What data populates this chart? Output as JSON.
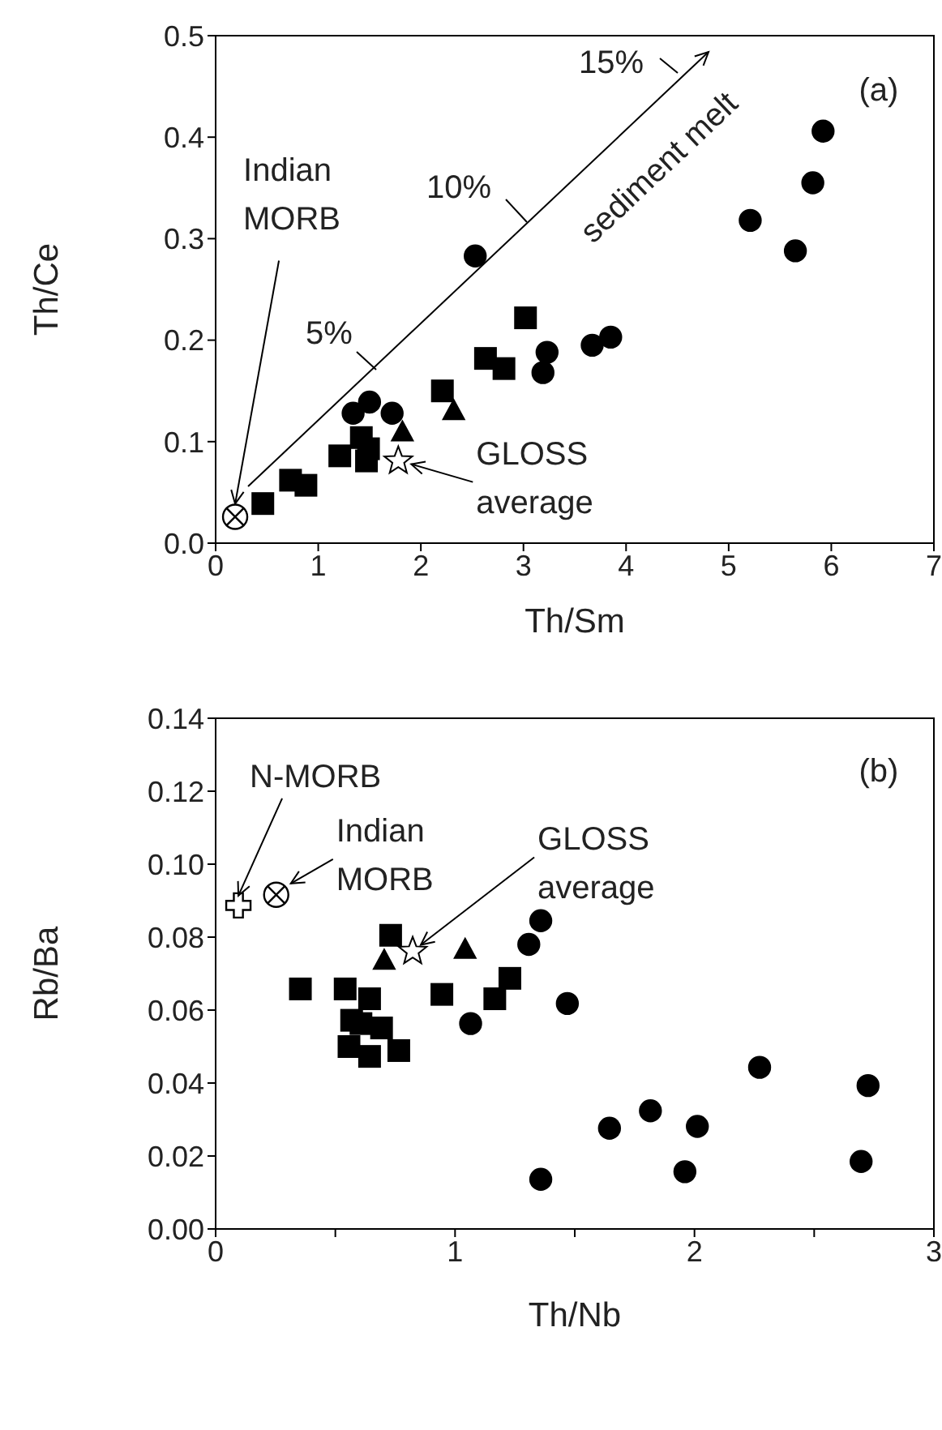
{
  "chart_data": [
    {
      "type": "scatter",
      "xlabel": "Th/Sm",
      "ylabel": "Th/Ce",
      "xlim": [
        0,
        7
      ],
      "ylim": [
        0,
        0.5
      ],
      "xticks": [
        0,
        1,
        2,
        3,
        4,
        5,
        6,
        7
      ],
      "yticks": [
        {
          "value": 0,
          "label": "0.0"
        },
        {
          "value": 0.1,
          "label": "0.1"
        },
        {
          "value": 0.2,
          "label": "0.2"
        },
        {
          "value": 0.3,
          "label": "0.3"
        },
        {
          "value": 0.4,
          "label": "0.4"
        },
        {
          "value": 0.5,
          "label": "0.5"
        }
      ],
      "grid": false,
      "legend": false,
      "series": [
        {
          "color": "#000000",
          "marker": "circle",
          "x": [
            5.92,
            5.82,
            5.21,
            5.65,
            2.53,
            3.67,
            3.85,
            3.23,
            3.19,
            1.34,
            1.5,
            1.72
          ],
          "values": [
            0.406,
            0.355,
            0.318,
            0.288,
            0.283,
            0.195,
            0.203,
            0.188,
            0.168,
            0.128,
            0.139,
            0.128
          ]
        },
        {
          "color": "#000000",
          "marker": "square",
          "x": [
            3.02,
            2.63,
            2.81,
            2.21,
            1.42,
            1.49,
            1.47,
            1.21,
            0.73,
            0.88,
            0.46
          ],
          "values": [
            0.222,
            0.182,
            0.172,
            0.15,
            0.104,
            0.093,
            0.081,
            0.086,
            0.062,
            0.057,
            0.039
          ]
        },
        {
          "color": "#000000",
          "marker": "triangle",
          "x": [
            1.82,
            2.32
          ],
          "values": [
            0.109,
            0.13
          ]
        },
        {
          "color": "#ffffff",
          "marker": "star",
          "x": [
            1.78
          ],
          "values": [
            0.081
          ]
        },
        {
          "color": "#ffffff",
          "marker": "circle",
          "x": [
            0.19
          ],
          "values": [
            0.026
          ]
        }
      ],
      "annotations": [
        "(a)",
        {
          "text": "Indian\nMORB",
          "x": 0.19,
          "y": 0.026
        },
        {
          "text": "GLOSS\naverage",
          "x": 1.78,
          "y": 0.081
        },
        "sediment melt",
        "5%",
        "10%",
        "15%"
      ]
    },
    {
      "type": "scatter",
      "xlabel": "Th/Nb",
      "ylabel": "Rb/Ba",
      "xlim": [
        0,
        3
      ],
      "ylim": [
        0,
        0.14
      ],
      "xticks": [
        0,
        {
          "value": 0.5,
          "label": null
        },
        1,
        {
          "value": 1.5,
          "label": null
        },
        2,
        {
          "value": 2.5,
          "label": null
        },
        3
      ],
      "yticks": [
        {
          "value": 0,
          "label": "0.00"
        },
        {
          "value": 0.02,
          "label": "0.02"
        },
        {
          "value": 0.04,
          "label": "0.04"
        },
        {
          "value": 0.06,
          "label": "0.06"
        },
        {
          "value": 0.08,
          "label": "0.08"
        },
        {
          "value": 0.1,
          "label": "0.10"
        },
        {
          "value": 0.12,
          "label": "0.12"
        },
        {
          "value": 0.14,
          "label": "0.14"
        }
      ],
      "grid": false,
      "legend": false,
      "series": [
        {
          "color": "#000000",
          "marker": "circle",
          "x": [
            1.358,
            1.308,
            1.469,
            1.065,
            2.272,
            2.725,
            1.816,
            1.645,
            2.012,
            1.96,
            2.696,
            1.358
          ],
          "values": [
            0.0845,
            0.078,
            0.0618,
            0.0563,
            0.0443,
            0.0393,
            0.0324,
            0.0276,
            0.0281,
            0.0157,
            0.0185,
            0.0136
          ]
        },
        {
          "color": "#000000",
          "marker": "square",
          "x": [
            0.731,
            0.354,
            0.541,
            0.643,
            0.945,
            1.229,
            1.166,
            0.568,
            0.607,
            0.693,
            0.557,
            0.643,
            0.765
          ],
          "values": [
            0.0805,
            0.0658,
            0.0658,
            0.0631,
            0.0643,
            0.0687,
            0.0631,
            0.0572,
            0.0563,
            0.0551,
            0.05,
            0.0473,
            0.0489
          ]
        },
        {
          "color": "#000000",
          "marker": "triangle",
          "x": [
            0.704,
            1.042
          ],
          "values": [
            0.0735,
            0.0765
          ]
        },
        {
          "color": "#ffffff",
          "marker": "star",
          "x": [
            0.823
          ],
          "values": [
            0.0761
          ]
        },
        {
          "color": "#ffffff",
          "marker": "cross",
          "x": [
            0.095
          ],
          "values": [
            0.0887
          ]
        },
        {
          "color": "#ffffff",
          "marker": "circle",
          "x": [
            0.253
          ],
          "values": [
            0.0916
          ]
        }
      ],
      "annotations": [
        "(b)",
        {
          "text": "N-MORB",
          "x": 0.095,
          "y": 0.0887
        },
        {
          "text": "Indian\nMORB",
          "x": 0.253,
          "y": 0.0916
        },
        {
          "text": "GLOSS\naverage",
          "x": 0.823,
          "y": 0.0761
        }
      ]
    }
  ]
}
